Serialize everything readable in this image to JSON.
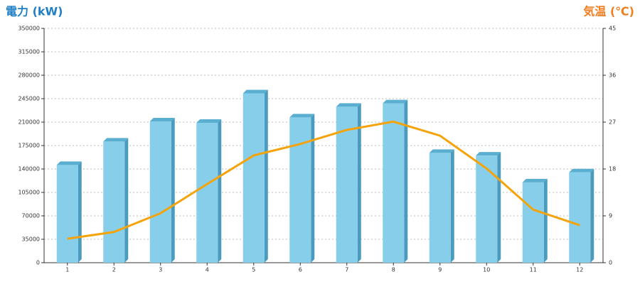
{
  "chart_data": {
    "type": "bar-line",
    "y_title": "電力 (kW)",
    "y2_title": "気温 (℃)",
    "categories": [
      "1",
      "2",
      "3",
      "4",
      "5",
      "6",
      "7",
      "8",
      "9",
      "10",
      "11",
      "12"
    ],
    "series": [
      {
        "name": "電力",
        "type": "bar",
        "color": "#87ceeb",
        "values": [
          146000,
          181000,
          211000,
          209000,
          253000,
          217000,
          233000,
          238000,
          164000,
          160000,
          120000,
          135000
        ]
      },
      {
        "name": "気温",
        "type": "line",
        "axis": "y2",
        "color": "#f5a30a",
        "values": [
          4.6,
          5.9,
          9.5,
          15.1,
          20.6,
          22.8,
          25.5,
          27.1,
          24.4,
          18.1,
          10.2,
          7.2
        ]
      }
    ],
    "ylim": [
      0,
      350000
    ],
    "yticks": [
      0,
      35000,
      70000,
      105000,
      140000,
      175000,
      210000,
      245000,
      280000,
      315000,
      350000
    ],
    "y2lim": [
      0,
      45
    ],
    "y2ticks": [
      0,
      9,
      18,
      27,
      36,
      45
    ],
    "grid": true
  }
}
